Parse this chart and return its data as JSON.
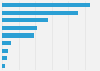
{
  "values": [
    530,
    460,
    280,
    210,
    195,
    55,
    35,
    28,
    20
  ],
  "bar_color": "#2b9fd4",
  "background_color": "#f2f2f2",
  "grid_color": "#e0e0e0",
  "xlim": [
    0,
    580
  ],
  "bar_height": 0.55,
  "figsize": [
    1.0,
    0.71
  ],
  "dpi": 100
}
